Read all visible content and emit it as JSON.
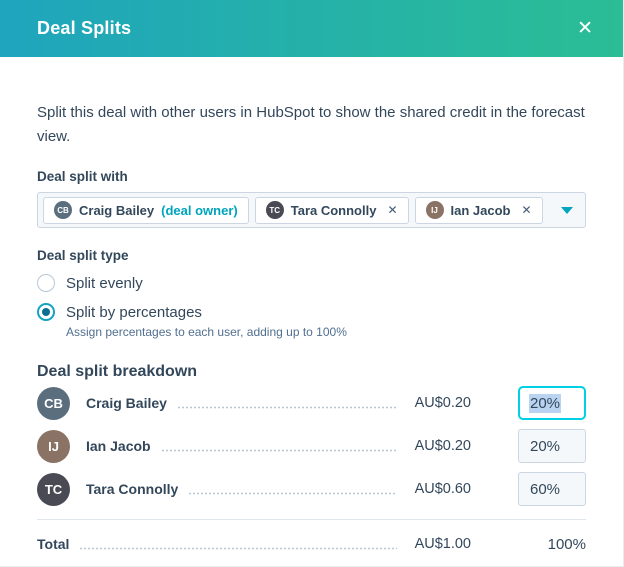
{
  "header": {
    "title": "Deal Splits",
    "close_glyph": "✕"
  },
  "description": "Split this deal with other users in HubSpot to show the shared credit in the forecast view.",
  "deal_split_with": {
    "label": "Deal split with",
    "remove_glyph": "✕",
    "chips": [
      {
        "name": "Craig Bailey",
        "suffix": "(deal owner)",
        "initials": "CB",
        "removable": false
      },
      {
        "name": "Tara Connolly",
        "initials": "TC",
        "removable": true
      },
      {
        "name": "Ian Jacob",
        "initials": "IJ",
        "removable": true
      }
    ]
  },
  "deal_split_type": {
    "label": "Deal split type",
    "options": [
      {
        "label": "Split evenly",
        "selected": false
      },
      {
        "label": "Split by percentages",
        "selected": true
      }
    ],
    "helper": "Assign percentages to each user, adding up to 100%"
  },
  "breakdown": {
    "heading": "Deal split breakdown",
    "rows": [
      {
        "name": "Craig Bailey",
        "initials": "CB",
        "amount": "AU$0.20",
        "percent": "20%",
        "focused": true
      },
      {
        "name": "Ian Jacob",
        "initials": "IJ",
        "amount": "AU$0.20",
        "percent": "20%",
        "focused": false
      },
      {
        "name": "Tara Connolly",
        "initials": "TC",
        "amount": "AU$0.60",
        "percent": "60%",
        "focused": false
      }
    ],
    "total": {
      "label": "Total",
      "amount": "AU$1.00",
      "percent": "100%"
    }
  },
  "colors": {
    "accent": "#00a4bd",
    "header_gradient_left": "#1fa5bd",
    "header_gradient_right": "#2bbd95",
    "focus_border": "#00d0e4",
    "text_selection": "#b9d3f1",
    "text": "#33475b",
    "muted": "#516f90"
  }
}
